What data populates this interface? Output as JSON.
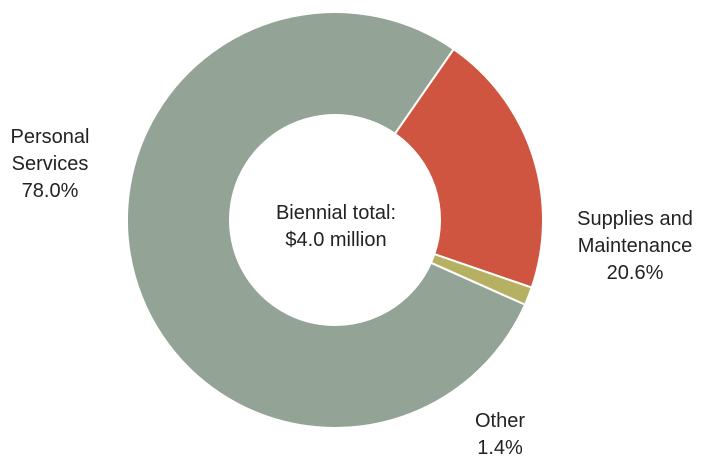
{
  "chart_data": {
    "type": "pie",
    "variant": "donut",
    "center_label": {
      "line1": "Biennial total:",
      "line2": "$4.0 million"
    },
    "slices": [
      {
        "label_lines": [
          "Personal",
          "Services"
        ],
        "value": 78.0,
        "value_label": "78.0%",
        "color": "#93A395"
      },
      {
        "label_lines": [
          "Supplies and",
          "Maintenance"
        ],
        "value": 20.6,
        "value_label": "20.6%",
        "color": "#CF5540"
      },
      {
        "label_lines": [
          "Other"
        ],
        "value": 1.4,
        "value_label": "1.4%",
        "color": "#B5B062"
      }
    ],
    "unit": "%",
    "legend": "none",
    "slice_border_color": "#ffffff"
  }
}
